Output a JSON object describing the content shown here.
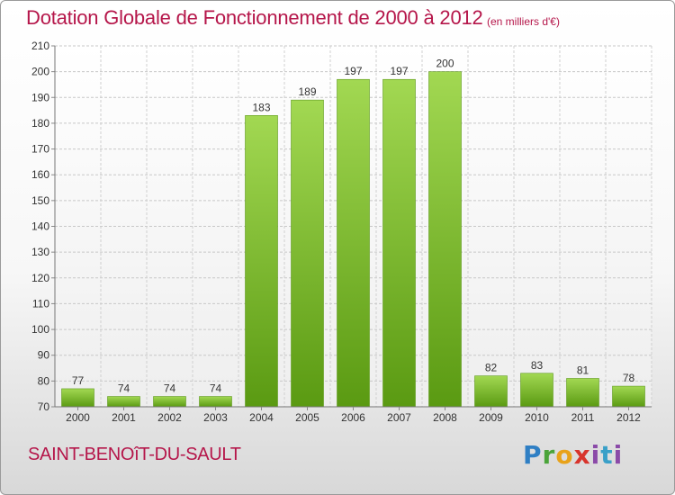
{
  "title": "Dotation Globale de Fonctionnement de 2000 à 2012",
  "unit_note": "(en milliers d'€)",
  "place_name": "SAINT-BENOîT-DU-SAULT",
  "logo": {
    "text": "Proxiti"
  },
  "colors": {
    "title": "#b5164a",
    "bar_top": "#9fd64e",
    "bar_bottom": "#5e9e14"
  },
  "chart_data": {
    "type": "bar",
    "title": "Dotation Globale de Fonctionnement de 2000 à 2012",
    "categories": [
      "2000",
      "2001",
      "2002",
      "2003",
      "2004",
      "2005",
      "2006",
      "2007",
      "2008",
      "2009",
      "2010",
      "2011",
      "2012"
    ],
    "values": [
      77,
      74,
      74,
      74,
      183,
      189,
      197,
      197,
      200,
      82,
      83,
      81,
      78
    ],
    "ylim": [
      70,
      210
    ],
    "yticks": [
      70,
      80,
      90,
      100,
      110,
      120,
      130,
      140,
      150,
      160,
      170,
      180,
      190,
      200,
      210
    ],
    "grid": true,
    "xlabel": "",
    "ylabel": ""
  }
}
